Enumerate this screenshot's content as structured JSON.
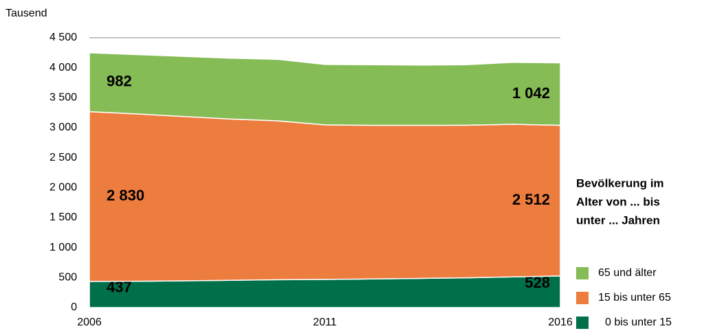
{
  "chart_data": {
    "type": "stacked_area",
    "y_axis_label": "Tausend",
    "legend_title": [
      "Bevölkerung im",
      "Alter von ... bis",
      "unter ... Jahren"
    ],
    "x": [
      2006,
      2007,
      2008,
      2009,
      2010,
      2011,
      2012,
      2013,
      2014,
      2015,
      2016
    ],
    "xlim": [
      2006,
      2016
    ],
    "xticks": [
      2006,
      2011,
      2016
    ],
    "ylim": [
      0,
      4500
    ],
    "yticks": [
      0,
      500,
      {
        "value": 1000,
        "label": "1 000"
      },
      {
        "value": 1500,
        "label": "1 500"
      },
      {
        "value": 2000,
        "label": "2 000"
      },
      {
        "value": 2500,
        "label": "2 500"
      },
      {
        "value": 3000,
        "label": "3 000"
      },
      {
        "value": 3500,
        "label": "3 500"
      },
      {
        "value": 4000,
        "label": "4 000"
      },
      {
        "value": 4500,
        "label": "4 500"
      }
    ],
    "series": [
      {
        "name": "0 bis unter 15",
        "color": "#00704a",
        "values": [
          437,
          440,
          447,
          455,
          465,
          470,
          478,
          487,
          497,
          512,
          528
        ],
        "value_labels": [
          "437",
          null,
          null,
          null,
          null,
          null,
          null,
          null,
          null,
          null,
          "528"
        ]
      },
      {
        "name": "15 bis unter 65",
        "color": "#ed7d3f",
        "values": [
          2830,
          2790,
          2740,
          2690,
          2650,
          2577,
          2562,
          2553,
          2545,
          2545,
          2512
        ],
        "value_labels": [
          "2 830",
          null,
          null,
          null,
          null,
          null,
          null,
          null,
          null,
          null,
          "2 512"
        ]
      },
      {
        "name": "65 und älter",
        "color": "#86bc56",
        "values": [
          982,
          990,
          1003,
          1015,
          1025,
          1008,
          1010,
          1005,
          1008,
          1033,
          1042
        ],
        "value_labels": [
          "982",
          null,
          null,
          null,
          null,
          null,
          null,
          null,
          null,
          null,
          "1 042"
        ]
      }
    ]
  }
}
